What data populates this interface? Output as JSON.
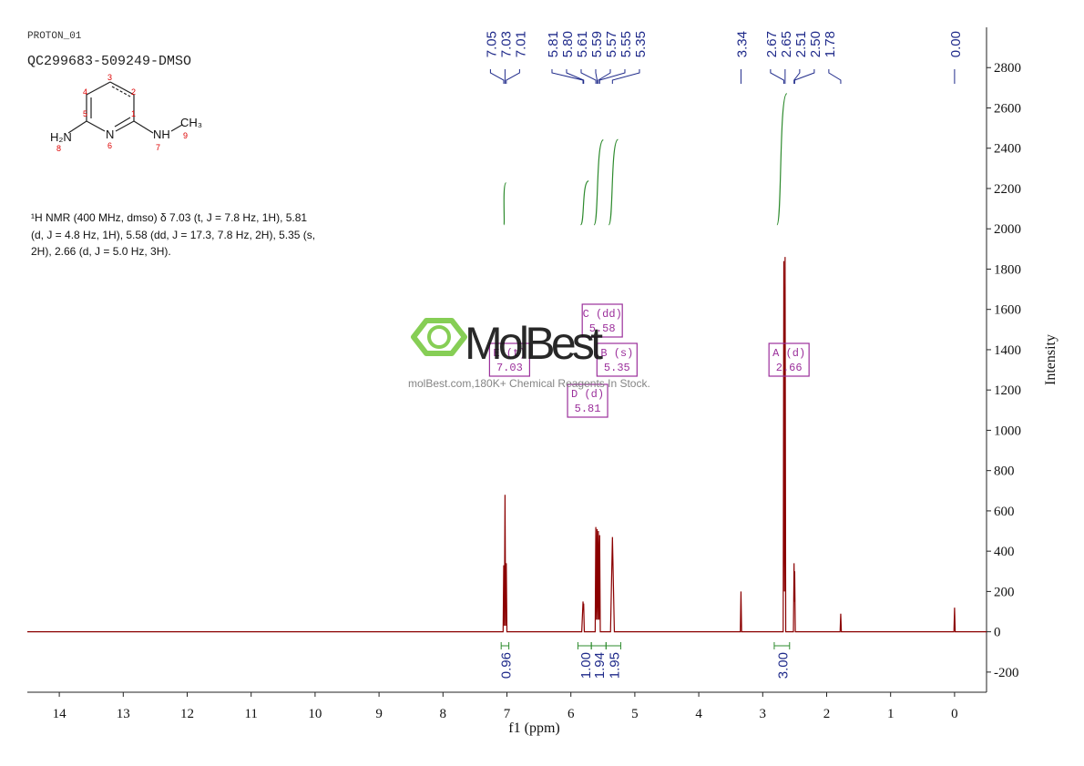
{
  "header": {
    "lines": [
      "PROTON_01",
      "QC299683-509249-DMSO"
    ]
  },
  "description": {
    "lines": [
      "¹H NMR (400 MHz, dmso) δ 7.03 (t, J = 7.8 Hz, 1H), 5.81",
      "(d, J = 4.8 Hz, 1H), 5.58 (dd, J = 17.3, 7.8 Hz, 2H), 5.35 (s,",
      "2H), 2.66 (d, J = 5.0 Hz, 3H)."
    ]
  },
  "structure": {
    "labels": [
      "H₂N",
      "N",
      "NH",
      "CH₃"
    ],
    "numbers": [
      "1",
      "2",
      "3",
      "4",
      "5",
      "6",
      "7",
      "8",
      "9"
    ]
  },
  "watermark": {
    "brand": "MolBest",
    "tagline": "molBest.com,180K+ Chemical Reagents In Stock."
  },
  "chart_data": {
    "type": "line",
    "x_label": "f1 (ppm)",
    "y_label": "Intensity",
    "xlim": [
      14.5,
      -0.5
    ],
    "xticks": [
      14,
      13,
      12,
      11,
      10,
      9,
      8,
      7,
      6,
      5,
      4,
      3,
      2,
      1,
      0
    ],
    "ylim": [
      -300,
      3000
    ],
    "yticks": [
      -200,
      0,
      200,
      400,
      600,
      800,
      1000,
      1200,
      1400,
      1600,
      1800,
      2000,
      2200,
      2400,
      2600,
      2800
    ],
    "x": [
      14.5,
      7.06,
      7.05,
      7.04,
      7.03,
      7.02,
      7.01,
      7.0,
      5.83,
      5.81,
      5.805,
      5.8,
      5.79,
      5.62,
      5.61,
      5.6,
      5.59,
      5.58,
      5.57,
      5.56,
      5.55,
      5.54,
      5.38,
      5.35,
      5.32,
      3.35,
      3.34,
      3.33,
      2.68,
      2.67,
      2.66,
      2.65,
      2.64,
      2.52,
      2.51,
      2.505,
      2.5,
      2.49,
      1.79,
      1.78,
      1.77,
      0.01,
      0.0,
      -0.01,
      -0.5
    ],
    "series": [
      {
        "color": "#8b0000",
        "values": [
          0,
          0,
          330,
          30,
          680,
          30,
          340,
          0,
          0,
          150,
          110,
          140,
          0,
          0,
          520,
          60,
          510,
          60,
          500,
          60,
          480,
          0,
          0,
          470,
          0,
          0,
          200,
          0,
          0,
          1840,
          200,
          1860,
          0,
          0,
          340,
          150,
          300,
          0,
          0,
          90,
          0,
          0,
          120,
          0,
          0
        ]
      }
    ],
    "peak_picks": {
      "values": [
        7.05,
        7.03,
        7.01,
        5.81,
        5.8,
        5.61,
        5.59,
        5.57,
        5.55,
        5.35,
        3.34,
        2.67,
        2.65,
        2.51,
        2.5,
        1.78,
        0
      ],
      "value_labels": [
        "7.05",
        "7.03",
        "7.01",
        "5.81",
        "5.80",
        "5.61",
        "5.59",
        "5.57",
        "5.55",
        "5.35",
        "3.34",
        "2.67",
        "2.65",
        "2.51",
        "2.50",
        "1.78",
        "0.00"
      ]
    },
    "integrals": {
      "ranges": [
        [
          7.09,
          6.97
        ],
        [
          5.89,
          5.68
        ],
        [
          5.68,
          5.45
        ],
        [
          5.45,
          5.22
        ],
        [
          2.82,
          2.58
        ]
      ],
      "values": [
        0.96,
        1,
        1.94,
        1.95,
        3
      ],
      "value_labels": [
        "0.96",
        "1.00",
        "1.94",
        "1.95",
        "3.00"
      ],
      "color": "#2e8b2e"
    },
    "multiplets": {
      "names": [
        "A (d)",
        "B (s)",
        "C (dd)",
        "D (d)",
        "E (t)"
      ],
      "values": [
        2.66,
        5.35,
        5.58,
        5.81,
        7.03
      ],
      "value_labels": [
        "2.66",
        "5.35",
        "5.58",
        "5.81",
        "7.03"
      ],
      "color": "#9b2f9b"
    }
  }
}
